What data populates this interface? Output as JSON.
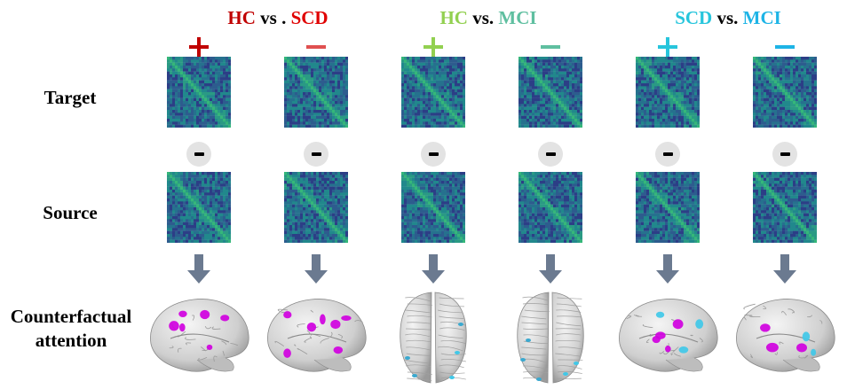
{
  "headers": [
    {
      "parts": [
        {
          "text": "HC",
          "color": "#c00000"
        },
        {
          "text": " vs . ",
          "color": "#000000"
        },
        {
          "text": "SCD",
          "color": "#e00000"
        }
      ]
    },
    {
      "parts": [
        {
          "text": "HC",
          "color": "#92d050"
        },
        {
          "text": " vs. ",
          "color": "#000000"
        },
        {
          "text": "MCI",
          "color": "#5fbfa0"
        }
      ]
    },
    {
      "parts": [
        {
          "text": "SCD",
          "color": "#27c5dc"
        },
        {
          "text": " vs. ",
          "color": "#000000"
        },
        {
          "text": "MCI",
          "color": "#1eb4e6"
        }
      ]
    }
  ],
  "signs": [
    {
      "symbol": "+",
      "color": "#c00000"
    },
    {
      "symbol": "-",
      "color": "#e05050"
    },
    {
      "symbol": "+",
      "color": "#92d050"
    },
    {
      "symbol": "-",
      "color": "#5fbfa0"
    },
    {
      "symbol": "+",
      "color": "#27c5dc"
    },
    {
      "symbol": "-",
      "color": "#1eb4e6"
    }
  ],
  "rows": {
    "target": "Target",
    "source": "Source",
    "attention_line1": "Counterfactual",
    "attention_line2": "attention"
  },
  "brain_views": [
    "lateral",
    "lateral",
    "top",
    "top",
    "lateral",
    "lateral"
  ],
  "colors": {
    "matrix_base": "#2e4a8a",
    "matrix_accent": "#35b779",
    "highlight_magenta": "#d000e0",
    "highlight_cyan": "#40c8e8",
    "arrow": "#6b7a90",
    "brain": "#d9d9d9"
  }
}
